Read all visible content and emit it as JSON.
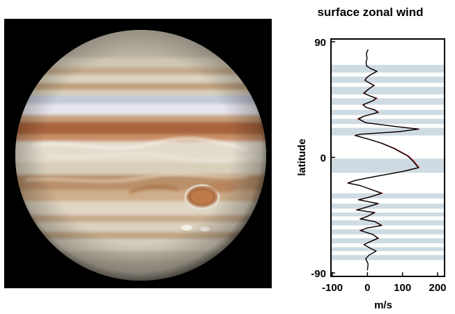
{
  "image": {
    "icon": "jupiter-planet-image",
    "background_color": "#000000"
  },
  "chart_data": {
    "type": "line",
    "title": "surface zonal wind",
    "xlabel": "m/s",
    "ylabel": "latitude",
    "xlim": [
      -100,
      200
    ],
    "ylim": [
      -90,
      90
    ],
    "x_ticks": [
      -100,
      0,
      100,
      200
    ],
    "y_ticks": [
      90,
      0,
      -90
    ],
    "grid": false,
    "band_color": "#cfdbe2",
    "latitude_bands": [
      [
        66,
        72
      ],
      [
        58,
        63
      ],
      [
        49,
        55
      ],
      [
        41,
        46
      ],
      [
        33,
        37
      ],
      [
        26,
        30
      ],
      [
        17,
        23
      ],
      [
        -1,
        -12
      ],
      [
        -28,
        -32
      ],
      [
        -36,
        -40
      ],
      [
        -43,
        -46
      ],
      [
        -49,
        -53
      ],
      [
        -56,
        -60
      ],
      [
        -63,
        -67
      ],
      [
        -70,
        -73
      ],
      [
        -76,
        -80
      ]
    ],
    "series": [
      {
        "color": "#000000",
        "points": [
          [
            2,
            84
          ],
          [
            -3,
            81
          ],
          [
            -1,
            77
          ],
          [
            -4,
            74
          ],
          [
            -2,
            71
          ],
          [
            10,
            69
          ],
          [
            27,
            67
          ],
          [
            7,
            64
          ],
          [
            -2,
            62
          ],
          [
            -7,
            60
          ],
          [
            5,
            58
          ],
          [
            18,
            56
          ],
          [
            3,
            53
          ],
          [
            -10,
            50
          ],
          [
            5,
            48
          ],
          [
            25,
            46
          ],
          [
            15,
            44
          ],
          [
            -12,
            41
          ],
          [
            -5,
            39
          ],
          [
            20,
            37
          ],
          [
            30,
            35
          ],
          [
            -10,
            32
          ],
          [
            -25,
            30
          ],
          [
            -5,
            27
          ],
          [
            80,
            24
          ],
          [
            145,
            22
          ],
          [
            90,
            20
          ],
          [
            -20,
            18
          ],
          [
            -35,
            17
          ],
          [
            5,
            14
          ],
          [
            40,
            11
          ],
          [
            75,
            7
          ],
          [
            95,
            4
          ],
          [
            115,
            1
          ],
          [
            130,
            -3
          ],
          [
            145,
            -8
          ],
          [
            100,
            -11
          ],
          [
            20,
            -15
          ],
          [
            -35,
            -18
          ],
          [
            -55,
            -20
          ],
          [
            -20,
            -22
          ],
          [
            10,
            -25
          ],
          [
            40,
            -28
          ],
          [
            5,
            -31
          ],
          [
            -25,
            -33
          ],
          [
            30,
            -36
          ],
          [
            -5,
            -39
          ],
          [
            -30,
            -41
          ],
          [
            20,
            -43
          ],
          [
            0,
            -46
          ],
          [
            -20,
            -48
          ],
          [
            20,
            -50
          ],
          [
            40,
            -53
          ],
          [
            0,
            -55
          ],
          [
            -20,
            -57
          ],
          [
            15,
            -60
          ],
          [
            30,
            -63
          ],
          [
            5,
            -66
          ],
          [
            -10,
            -68
          ],
          [
            10,
            -71
          ],
          [
            25,
            -73
          ],
          [
            5,
            -76
          ],
          [
            -5,
            -79
          ],
          [
            2,
            -83
          ],
          [
            0,
            -88
          ]
        ]
      },
      {
        "color": "#d04040",
        "points": [
          [
            10,
            69
          ],
          [
            28,
            67
          ],
          [
            6,
            64
          ],
          [
            -3,
            62
          ],
          [
            -8,
            60
          ],
          [
            6,
            58
          ],
          [
            20,
            56
          ],
          [
            2,
            53
          ],
          [
            -12,
            50
          ],
          [
            6,
            48
          ],
          [
            28,
            46
          ],
          [
            16,
            44
          ],
          [
            -14,
            41
          ],
          [
            -4,
            39
          ],
          [
            22,
            37
          ],
          [
            32,
            35
          ],
          [
            -12,
            32
          ],
          [
            -28,
            30
          ],
          [
            -5,
            27
          ],
          [
            82,
            24
          ],
          [
            148,
            22
          ],
          [
            92,
            20
          ],
          [
            -22,
            18
          ],
          [
            -36,
            17
          ],
          [
            5,
            14
          ],
          [
            42,
            11
          ],
          [
            78,
            7
          ],
          [
            98,
            4
          ],
          [
            118,
            1
          ],
          [
            133,
            -3
          ],
          [
            148,
            -8
          ],
          [
            102,
            -11
          ],
          [
            20,
            -15
          ],
          [
            -36,
            -18
          ],
          [
            -57,
            -20
          ],
          [
            -21,
            -22
          ],
          [
            11,
            -25
          ],
          [
            43,
            -28
          ],
          [
            5,
            -31
          ],
          [
            -27,
            -33
          ],
          [
            32,
            -36
          ],
          [
            -6,
            -39
          ],
          [
            -32,
            -41
          ],
          [
            22,
            -43
          ],
          [
            0,
            -46
          ],
          [
            -22,
            -48
          ],
          [
            22,
            -50
          ],
          [
            42,
            -53
          ],
          [
            0,
            -55
          ],
          [
            -22,
            -57
          ],
          [
            16,
            -60
          ],
          [
            32,
            -63
          ],
          [
            5,
            -66
          ]
        ]
      }
    ]
  }
}
